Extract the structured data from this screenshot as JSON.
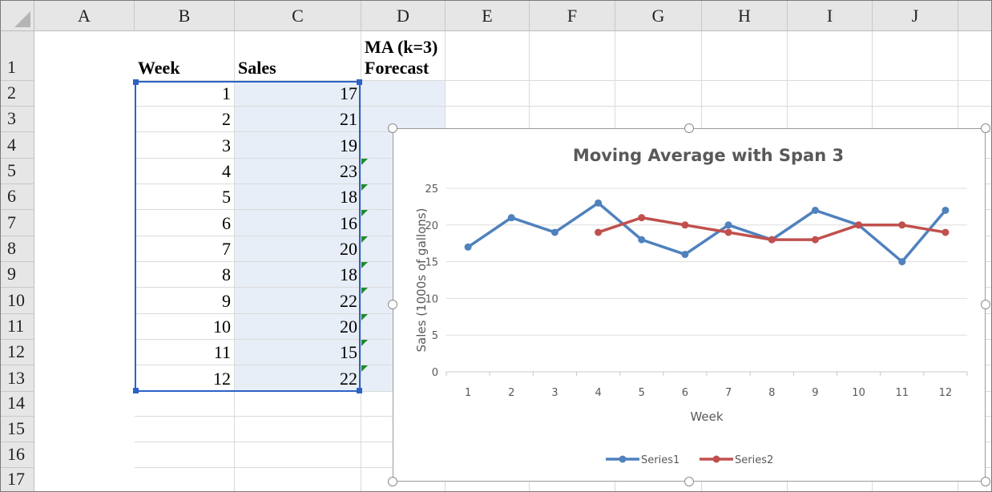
{
  "spreadsheet": {
    "columns": [
      "A",
      "B",
      "C",
      "D",
      "E",
      "F",
      "G",
      "H",
      "I",
      "J"
    ],
    "rows": [
      "1",
      "2",
      "3",
      "4",
      "5",
      "6",
      "7",
      "8",
      "9",
      "10",
      "11",
      "12",
      "13",
      "14",
      "15",
      "16",
      "17"
    ],
    "headers": {
      "A1": "Week",
      "B1": "Sales",
      "C1": "MA (k=3)\nForecast"
    },
    "week": [
      "1",
      "2",
      "3",
      "4",
      "5",
      "6",
      "7",
      "8",
      "9",
      "10",
      "11",
      "12"
    ],
    "sales": [
      "17",
      "21",
      "19",
      "23",
      "18",
      "16",
      "20",
      "18",
      "22",
      "20",
      "15",
      "22"
    ],
    "forecast": [
      "",
      "",
      "",
      "19",
      "21",
      "20",
      "19",
      "18",
      "18",
      "20",
      "20",
      "19"
    ],
    "selected_range": "B2:C13"
  },
  "chart_data": {
    "type": "line",
    "title": "Moving Average with Span 3",
    "xlabel": "Week",
    "ylabel": "Sales (1000s of gallons)",
    "categories": [
      "1",
      "2",
      "3",
      "4",
      "5",
      "6",
      "7",
      "8",
      "9",
      "10",
      "11",
      "12"
    ],
    "ylim": [
      0,
      25
    ],
    "yticks": [
      "0",
      "5",
      "10",
      "15",
      "20",
      "25"
    ],
    "grid": true,
    "legend": "bottom",
    "series": [
      {
        "name": "Series1",
        "color": "#4f81bd",
        "values": [
          17,
          21,
          19,
          23,
          18,
          16,
          20,
          18,
          22,
          20,
          15,
          22
        ]
      },
      {
        "name": "Series2",
        "color": "#c0504d",
        "values": [
          null,
          null,
          null,
          19,
          21,
          20,
          19,
          18,
          18,
          20,
          20,
          19
        ]
      }
    ]
  }
}
